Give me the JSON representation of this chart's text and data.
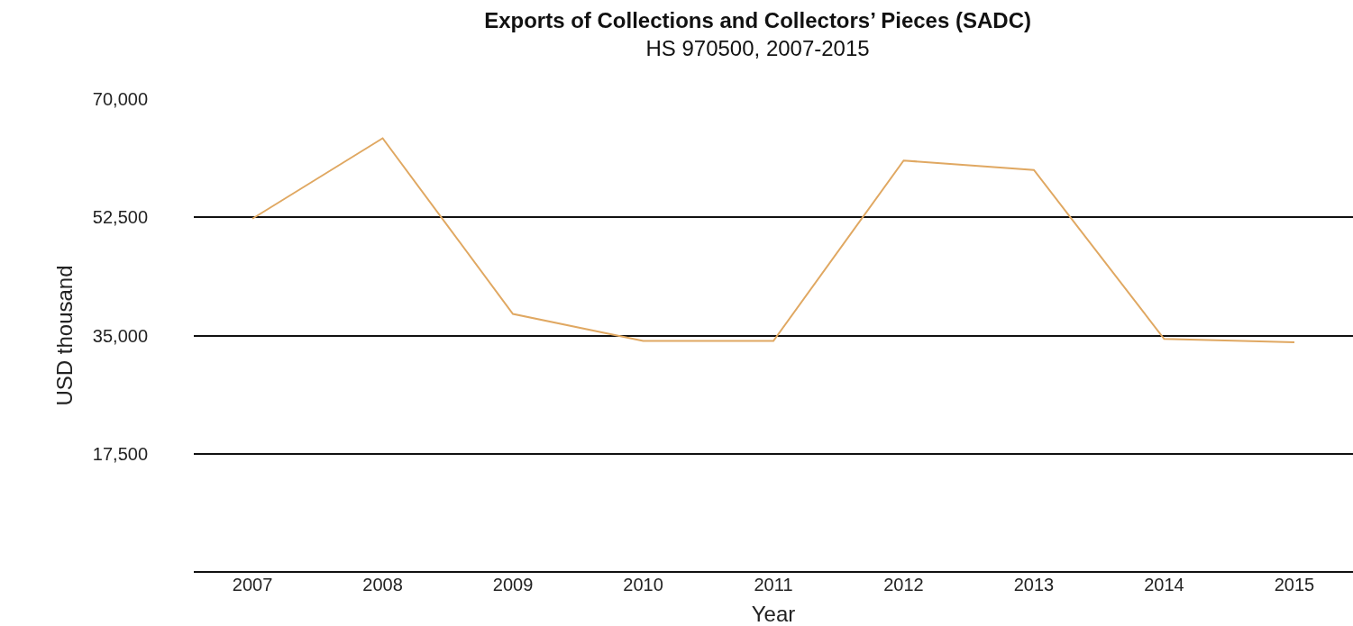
{
  "chart_data": {
    "type": "line",
    "title": "Exports of Collections and Collectors’ Pieces (SADC)",
    "subtitle": "HS 970500, 2007-2015",
    "xlabel": "Year",
    "ylabel": "USD thousand",
    "categories": [
      "2007",
      "2008",
      "2009",
      "2010",
      "2011",
      "2012",
      "2013",
      "2014",
      "2015"
    ],
    "series": [
      {
        "color": "#e0a862",
        "values": [
          52300,
          64200,
          38200,
          34200,
          34200,
          60900,
          59500,
          34500,
          34000
        ]
      }
    ],
    "ylim": [
      0,
      70000
    ],
    "yticks": [
      {
        "value": 0,
        "label": null
      },
      {
        "value": 17500,
        "label": "17,500"
      },
      {
        "value": 35000,
        "label": "35,000"
      },
      {
        "value": 52500,
        "label": "52,500"
      },
      {
        "value": 70000,
        "label": "70,000"
      }
    ],
    "grid": "y",
    "legend": false,
    "marker": "none",
    "line_style": "solid"
  }
}
